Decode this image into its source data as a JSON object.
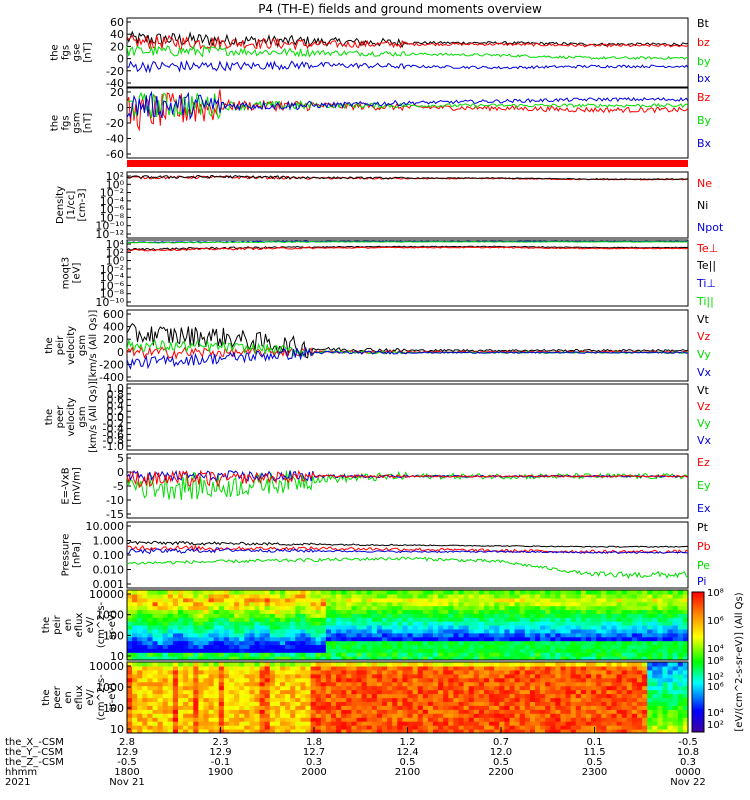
{
  "title": "P4 (TH-E) fields and ground moments overview",
  "colors": {
    "black": "#000000",
    "red": "#ff0000",
    "green": "#00dd00",
    "blue": "#0000dd"
  },
  "chart_data": {
    "type": "line",
    "x_range_hours": [
      18.0,
      24.0
    ],
    "x_ticks": {
      "rows": [
        {
          "label": "the_X_-CSM",
          "values": [
            "2.8",
            "2.3",
            "1.8",
            "1.2",
            "0.7",
            "0.1",
            "-0.5"
          ]
        },
        {
          "label": "the_Y_-CSM",
          "values": [
            "12.9",
            "12.9",
            "12.7",
            "12.4",
            "12.0",
            "11.5",
            "10.8"
          ]
        },
        {
          "label": "the_Z_-CSM",
          "values": [
            "-0.5",
            "-0.1",
            "0.3",
            "0.5",
            "0.5",
            "0.5",
            "0.3"
          ]
        },
        {
          "label": "hhmm",
          "values": [
            "1800",
            "1900",
            "2000",
            "2100",
            "2200",
            "2300",
            "0000"
          ]
        },
        {
          "label": "2021",
          "values": [
            "Nov 21",
            "",
            "",
            "",
            "",
            "",
            "Nov 22"
          ]
        }
      ]
    },
    "panels": [
      {
        "id": "fgs-gse",
        "ylabel": [
          "the",
          "fgs",
          "gse",
          "[nT]"
        ],
        "yticks": [
          "60",
          "40",
          "20",
          "0",
          "-20",
          "-40"
        ],
        "ylim": [
          -40,
          60
        ],
        "scale": "linear",
        "legend": [
          {
            "name": "Bt",
            "color": "black"
          },
          {
            "name": "bz",
            "color": "red"
          },
          {
            "name": "by",
            "color": "green"
          },
          {
            "name": "bx",
            "color": "blue"
          }
        ],
        "series": [
          {
            "name": "Bt",
            "color": "black",
            "levels": [
              30,
              28,
              26,
              24,
              24,
              22
            ],
            "noise": [
              10,
              8,
              6,
              2,
              2,
              2
            ]
          },
          {
            "name": "bz",
            "color": "red",
            "levels": [
              25,
              24,
              22,
              22,
              22,
              20
            ],
            "noise": [
              10,
              8,
              5,
              2,
              2,
              2
            ]
          },
          {
            "name": "by",
            "color": "green",
            "levels": [
              12,
              12,
              10,
              8,
              6,
              2
            ],
            "noise": [
              8,
              6,
              4,
              2,
              2,
              2
            ]
          },
          {
            "name": "bx",
            "color": "blue",
            "levels": [
              -10,
              -10,
              -8,
              -10,
              -12,
              -10
            ],
            "noise": [
              8,
              6,
              4,
              2,
              2,
              2
            ]
          }
        ]
      },
      {
        "id": "fgs-gsm",
        "ylabel": [
          "the",
          "fgs",
          "gsm",
          "[nT]"
        ],
        "yticks": [
          "20",
          "0",
          "-20",
          "-40",
          "-60"
        ],
        "ylim": [
          -60,
          20
        ],
        "scale": "linear",
        "legend": [
          {
            "name": "Bz",
            "color": "red"
          },
          {
            "name": "By",
            "color": "green"
          },
          {
            "name": "Bx",
            "color": "blue"
          }
        ],
        "series": [
          {
            "name": "Bz",
            "color": "red",
            "levels": [
              -10,
              0,
              0,
              -2,
              -3,
              -5
            ],
            "noise": [
              20,
              6,
              4,
              3,
              3,
              3
            ]
          },
          {
            "name": "By",
            "color": "green",
            "levels": [
              0,
              0,
              0,
              0,
              0,
              0
            ],
            "noise": [
              15,
              5,
              3,
              2,
              2,
              2
            ]
          },
          {
            "name": "Bx",
            "color": "blue",
            "levels": [
              0,
              0,
              0,
              3,
              5,
              7
            ],
            "noise": [
              15,
              5,
              3,
              2,
              2,
              2
            ]
          }
        ]
      },
      {
        "id": "flag-bar",
        "ylabel": [],
        "yticks": [],
        "legend": [],
        "series": []
      },
      {
        "id": "density",
        "ylabel": [
          "Density",
          "[1/cc]",
          "[cm-3]"
        ],
        "yticks": [
          "10²",
          "10⁰",
          "10⁻²",
          "10⁻⁴",
          "10⁻⁶",
          "10⁻⁸",
          "10⁻¹⁰",
          "10⁻¹²"
        ],
        "ylim": [
          -12,
          2
        ],
        "scale": "log",
        "legend": [
          {
            "name": "Ne",
            "color": "red"
          },
          {
            "name": "Ni",
            "color": "black"
          },
          {
            "name": "Npot",
            "color": "blue"
          }
        ],
        "series": [
          {
            "name": "Ne",
            "color": "red",
            "levels": [
              0.8,
              0.9,
              0.7,
              0.6,
              0.6,
              0.4
            ],
            "noise": [
              0.3,
              0.3,
              0.2,
              0.1,
              0.1,
              0.1
            ]
          },
          {
            "name": "Ni",
            "color": "black",
            "levels": [
              0.9,
              1.0,
              0.8,
              0.7,
              0.7,
              0.5
            ],
            "noise": [
              0.3,
              0.3,
              0.2,
              0.1,
              0.1,
              0.1
            ]
          }
        ]
      },
      {
        "id": "moqt3",
        "ylabel": [
          "moqt3",
          "[eV]"
        ],
        "yticks": [
          "10⁴",
          "10²",
          "10⁰",
          "10⁻²",
          "10⁻⁴",
          "10⁻⁶",
          "10⁻⁸",
          "10⁻¹⁰"
        ],
        "ylim": [
          -10,
          4
        ],
        "scale": "log",
        "legend": [
          {
            "name": "Te⊥",
            "color": "red"
          },
          {
            "name": "Te||",
            "color": "black"
          },
          {
            "name": "Ti⊥",
            "color": "blue"
          },
          {
            "name": "Ti||",
            "color": "green"
          }
        ],
        "series": [
          {
            "name": "Ti⊥",
            "color": "blue",
            "levels": [
              3.5,
              3.6,
              3.7,
              3.7,
              3.7,
              3.7
            ],
            "noise": [
              0.1,
              0.1,
              0.05,
              0.05,
              0.05,
              0.05
            ]
          },
          {
            "name": "Ti||",
            "color": "green",
            "levels": [
              3.4,
              3.5,
              3.6,
              3.6,
              3.6,
              3.6
            ],
            "noise": [
              0.1,
              0.1,
              0.05,
              0.05,
              0.05,
              0.05
            ]
          },
          {
            "name": "Te||",
            "color": "black",
            "levels": [
              2.0,
              2.3,
              2.5,
              2.6,
              2.6,
              2.4
            ],
            "noise": [
              0.2,
              0.2,
              0.1,
              0.1,
              0.1,
              0.1
            ]
          },
          {
            "name": "Te⊥",
            "color": "red",
            "levels": [
              1.8,
              2.1,
              2.3,
              2.4,
              2.4,
              2.2
            ],
            "noise": [
              0.2,
              0.2,
              0.1,
              0.1,
              0.1,
              0.1
            ]
          }
        ]
      },
      {
        "id": "peir-velocity",
        "ylabel": [
          "the",
          "peir",
          "velocity",
          "gsm",
          "[km/s (All Qs)]"
        ],
        "yticks": [
          "600",
          "400",
          "200",
          "0",
          "-200",
          "-400"
        ],
        "ylim": [
          -400,
          600
        ],
        "scale": "linear",
        "legend": [
          {
            "name": "Vt",
            "color": "black"
          },
          {
            "name": "Vz",
            "color": "red"
          },
          {
            "name": "Vy",
            "color": "green"
          },
          {
            "name": "Vx",
            "color": "blue"
          }
        ],
        "series": [
          {
            "name": "Vt",
            "color": "black",
            "levels": [
              260,
              220,
              50,
              30,
              30,
              30
            ],
            "noise": [
              150,
              140,
              30,
              15,
              15,
              15
            ]
          },
          {
            "name": "Vz",
            "color": "red",
            "levels": [
              0,
              0,
              10,
              10,
              10,
              10
            ],
            "noise": [
              80,
              60,
              20,
              10,
              10,
              10
            ]
          },
          {
            "name": "Vy",
            "color": "green",
            "levels": [
              100,
              80,
              10,
              0,
              0,
              0
            ],
            "noise": [
              80,
              70,
              20,
              10,
              10,
              10
            ]
          },
          {
            "name": "Vx",
            "color": "blue",
            "levels": [
              -150,
              -80,
              0,
              0,
              0,
              0
            ],
            "noise": [
              80,
              80,
              20,
              10,
              10,
              10
            ]
          }
        ]
      },
      {
        "id": "peer-velocity",
        "ylabel": [
          "the",
          "peer",
          "velocity",
          "gsm",
          "[km/s (All Qs)]"
        ],
        "yticks": [
          "1.0",
          "0.8",
          "0.6",
          "0.4",
          "0.2",
          "0.0",
          "-0.2",
          "-0.4",
          "-0.6",
          "-0.8",
          "-1.0"
        ],
        "ylim": [
          -1,
          1
        ],
        "scale": "linear",
        "legend": [
          {
            "name": "Vt",
            "color": "black"
          },
          {
            "name": "Vz",
            "color": "red"
          },
          {
            "name": "Vy",
            "color": "green"
          },
          {
            "name": "Vx",
            "color": "blue"
          }
        ],
        "series": []
      },
      {
        "id": "e-field",
        "ylabel": [
          "E=-VxB",
          "[mV/m]"
        ],
        "yticks": [
          "5",
          "0",
          "-5",
          "-10",
          "-15"
        ],
        "ylim": [
          -15,
          8
        ],
        "scale": "linear",
        "legend": [
          {
            "name": "Ez",
            "color": "red"
          },
          {
            "name": "Ey",
            "color": "green"
          },
          {
            "name": "Ex",
            "color": "blue"
          }
        ],
        "series": [
          {
            "name": "Ey",
            "color": "green",
            "levels": [
              -3,
              -4,
              -1,
              0,
              0,
              0
            ],
            "noise": [
              5,
              4,
              1.5,
              1,
              1,
              1
            ]
          },
          {
            "name": "Ex",
            "color": "blue",
            "levels": [
              0,
              0,
              0,
              0,
              0,
              0
            ],
            "noise": [
              2,
              2,
              0.5,
              0.3,
              0.3,
              0.3
            ]
          },
          {
            "name": "Ez",
            "color": "red",
            "levels": [
              -1,
              -1,
              0,
              0,
              0,
              0
            ],
            "noise": [
              3,
              2,
              0.5,
              0.3,
              0.3,
              0.3
            ]
          }
        ]
      },
      {
        "id": "pressure",
        "ylabel": [
          "Pressure",
          "[nPa]"
        ],
        "yticks": [
          "10.000",
          "1.000",
          "0.100",
          "0.010",
          "0.001"
        ],
        "ylim": [
          -3,
          1
        ],
        "scale": "log",
        "legend": [
          {
            "name": "Pt",
            "color": "black"
          },
          {
            "name": "Pb",
            "color": "red"
          },
          {
            "name": "Pe",
            "color": "green"
          },
          {
            "name": "Pi",
            "color": "blue"
          }
        ],
        "series": [
          {
            "name": "Pt",
            "color": "black",
            "levels": [
              -0.25,
              -0.3,
              -0.35,
              -0.4,
              -0.45,
              -0.5
            ],
            "noise": [
              0.1,
              0.08,
              0.05,
              0.03,
              0.03,
              0.03
            ]
          },
          {
            "name": "Pb",
            "color": "red",
            "levels": [
              -0.55,
              -0.6,
              -0.6,
              -0.65,
              -0.75,
              -0.8
            ],
            "noise": [
              0.15,
              0.1,
              0.1,
              0.1,
              0.1,
              0.1
            ]
          },
          {
            "name": "Pi",
            "color": "blue",
            "levels": [
              -0.8,
              -0.7,
              -0.75,
              -0.8,
              -0.8,
              -0.85
            ],
            "noise": [
              0.15,
              0.1,
              0.05,
              0.05,
              0.05,
              0.05
            ]
          },
          {
            "name": "Pe",
            "color": "green",
            "levels": [
              -1.5,
              -1.4,
              -1.3,
              -1.2,
              -1.4,
              -2.2
            ],
            "noise": [
              0.1,
              0.1,
              0.1,
              0.1,
              0.1,
              0.2
            ]
          }
        ]
      },
      {
        "id": "peir-eflux",
        "ylabel": [
          "the",
          "peir",
          "en",
          "eflux",
          "eV/",
          "(cm^2-s-",
          "sr-eV)"
        ],
        "yticks": [
          "10000",
          "1000",
          "100",
          "10"
        ],
        "ylim": [
          10,
          20000
        ],
        "scale": "log",
        "spectrogram": "ion"
      },
      {
        "id": "peer-eflux",
        "ylabel": [
          "the",
          "peer",
          "en",
          "eflux",
          "eV/",
          "(cm^2-s-",
          "sr-eV)"
        ],
        "yticks": [
          "10000",
          "1000",
          "100",
          "10"
        ],
        "ylim": [
          10,
          20000
        ],
        "scale": "log",
        "spectrogram": "electron"
      }
    ],
    "colorbar": {
      "ticks": [
        "10⁸",
        "10⁶",
        "10⁴",
        "10²"
      ],
      "label": "[eV/(cm^2-s-sr-eV)] (All Qs)"
    }
  }
}
